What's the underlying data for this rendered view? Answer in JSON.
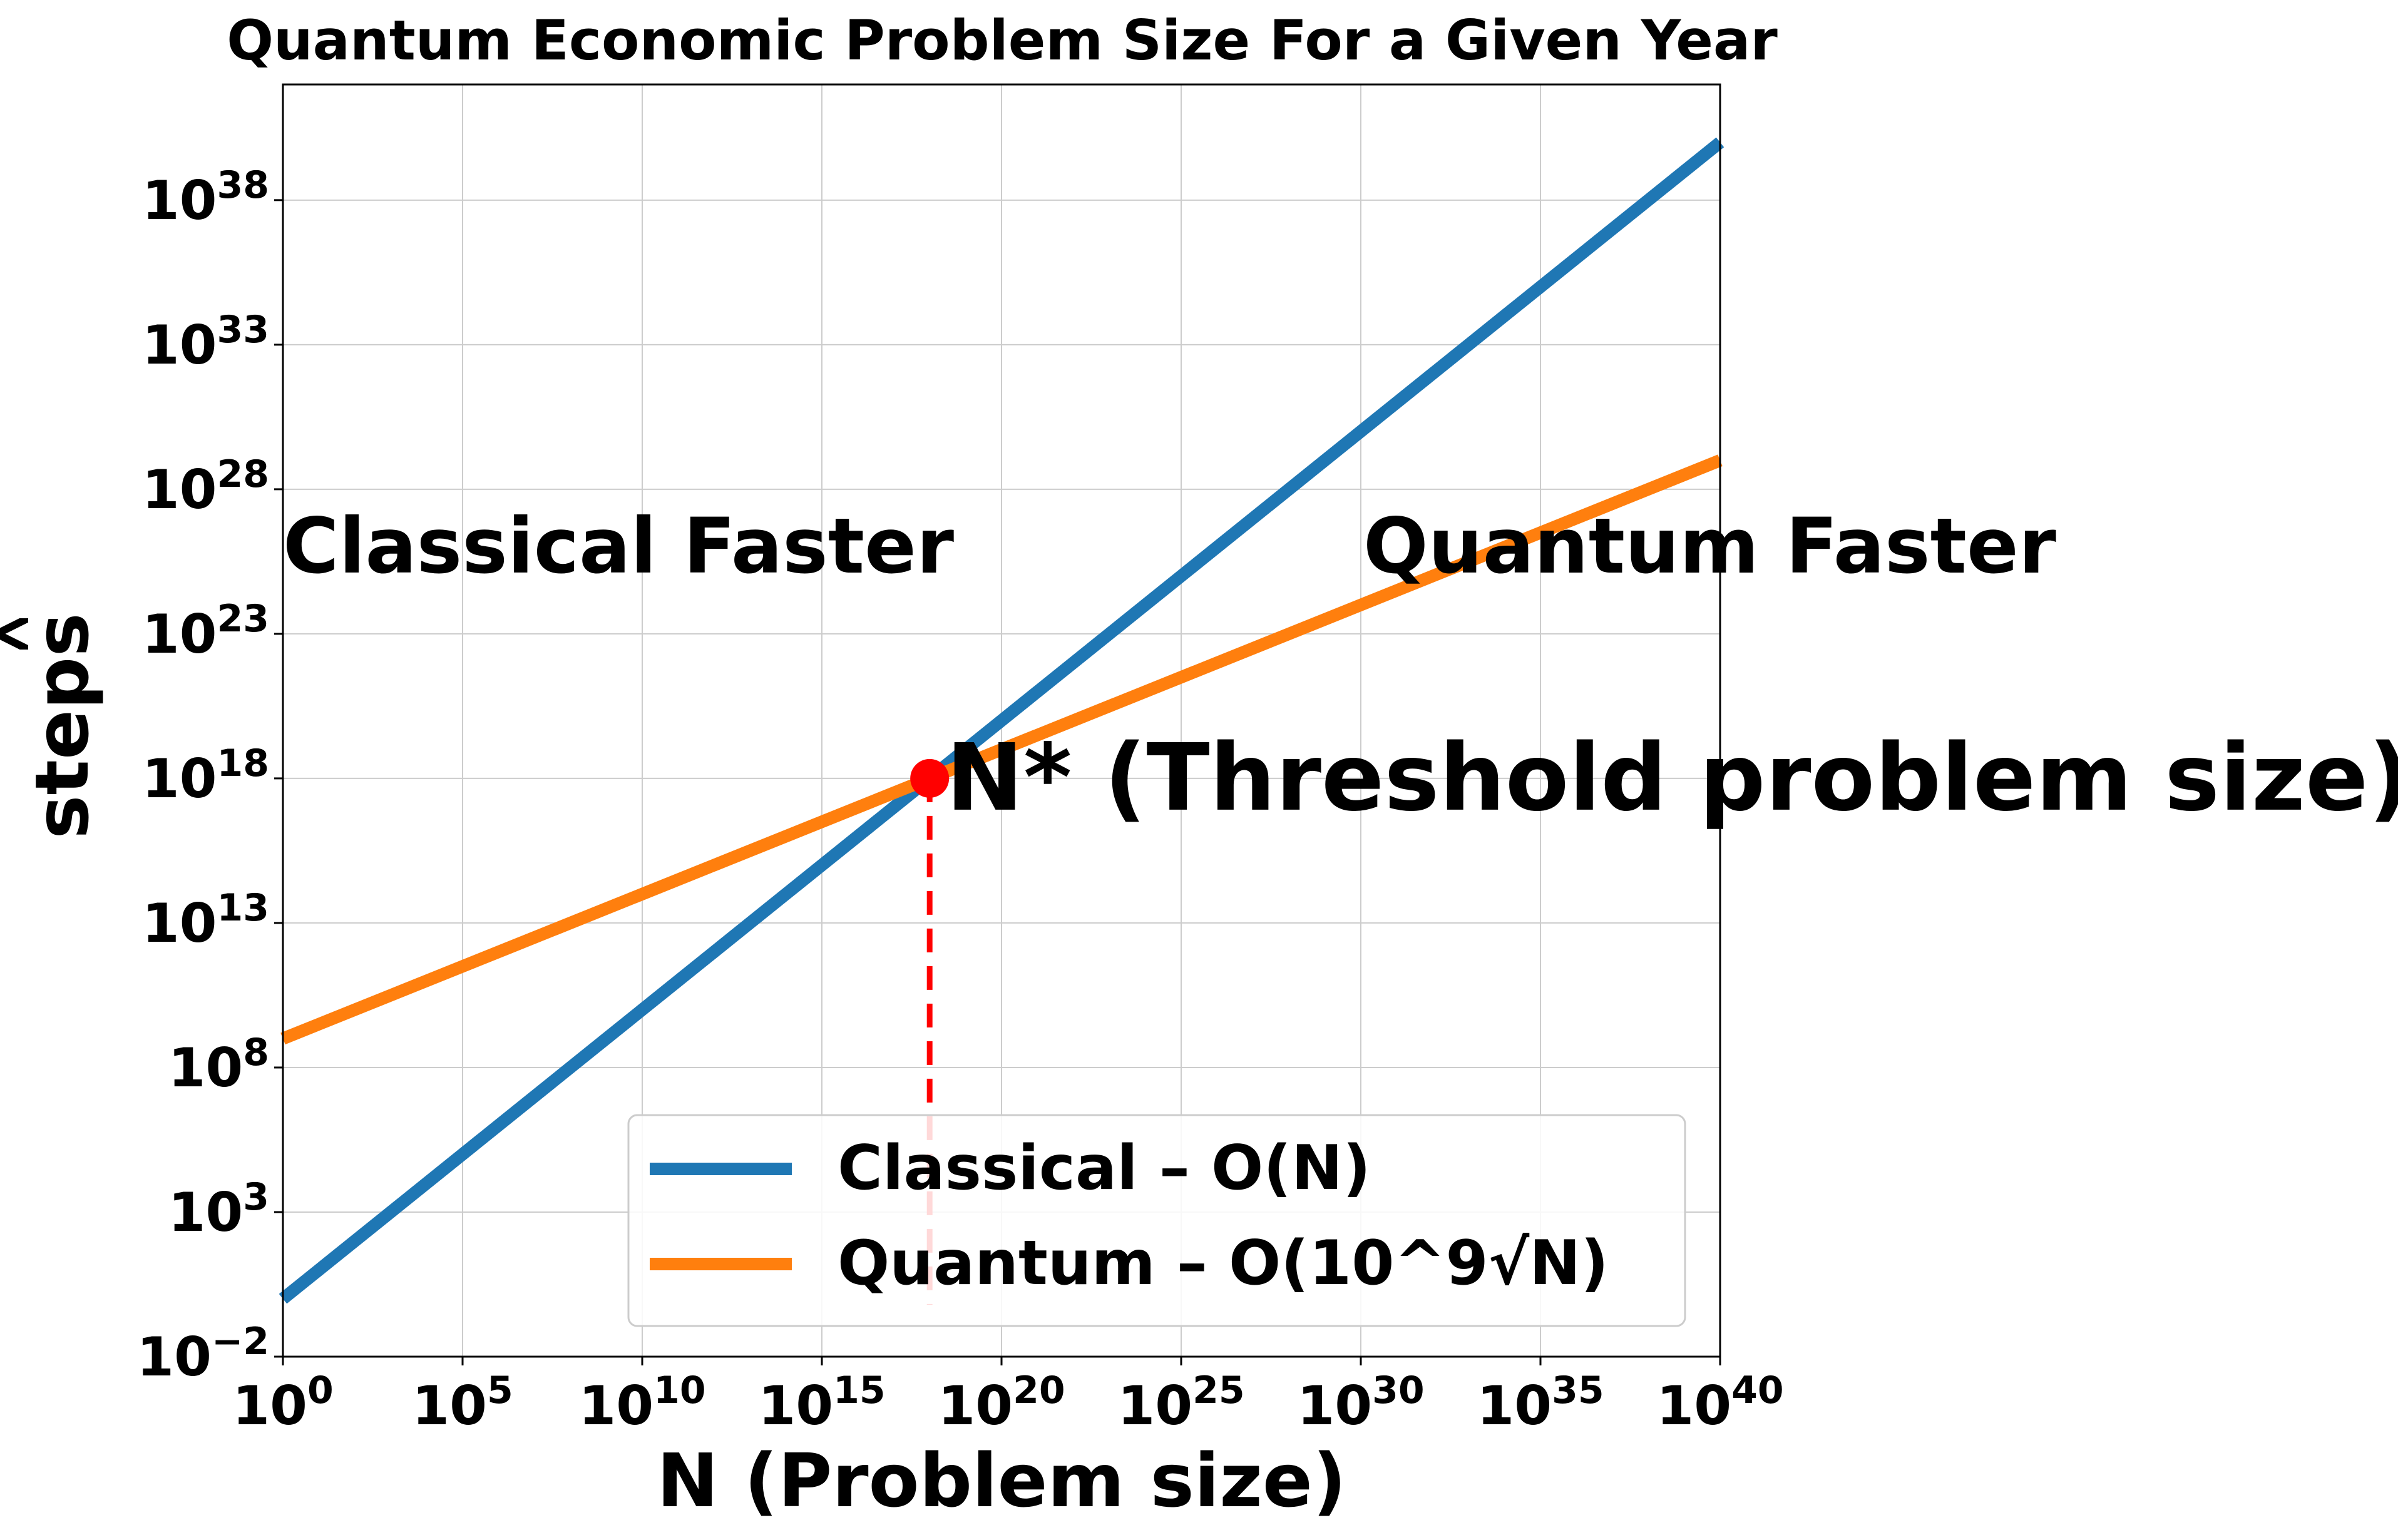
{
  "chart_data": {
    "type": "line",
    "title": "Quantum Economic Problem Size For a Given Year",
    "xlabel": "N (Problem size)",
    "ylabel": "steps",
    "x_scale": "log",
    "y_scale": "log",
    "xlim": [
      "1e0",
      "1e40"
    ],
    "ylim": [
      "1e-2",
      "1e42"
    ],
    "grid": true,
    "legend_position": "lower-right",
    "x_ticks": [
      {
        "base": "10",
        "exp": "0"
      },
      {
        "base": "10",
        "exp": "5"
      },
      {
        "base": "10",
        "exp": "10"
      },
      {
        "base": "10",
        "exp": "15"
      },
      {
        "base": "10",
        "exp": "20"
      },
      {
        "base": "10",
        "exp": "25"
      },
      {
        "base": "10",
        "exp": "30"
      },
      {
        "base": "10",
        "exp": "35"
      },
      {
        "base": "10",
        "exp": "40"
      }
    ],
    "y_ticks": [
      {
        "base": "10",
        "exp": "−2"
      },
      {
        "base": "10",
        "exp": "3"
      },
      {
        "base": "10",
        "exp": "8"
      },
      {
        "base": "10",
        "exp": "13"
      },
      {
        "base": "10",
        "exp": "18"
      },
      {
        "base": "10",
        "exp": "23"
      },
      {
        "base": "10",
        "exp": "28"
      },
      {
        "base": "10",
        "exp": "33"
      },
      {
        "base": "10",
        "exp": "38"
      }
    ],
    "series": [
      {
        "name": "Classical – O(N)",
        "color": "#1f77b4",
        "x": [
          "1e0",
          "1e40"
        ],
        "y": [
          "1e0",
          "1e40"
        ]
      },
      {
        "name": "Quantum – O(10^9√N)",
        "color": "#ff7f0e",
        "x": [
          "1e0",
          "1e40"
        ],
        "y": [
          "1e9",
          "1e29"
        ]
      }
    ],
    "threshold": {
      "x": "1e18",
      "y": "1e18",
      "label": "N* (Threshold problem size)",
      "color": "#ff0000"
    },
    "regions": [
      {
        "label": "Classical Faster",
        "from": "1e1.5",
        "to": "1e17.6"
      },
      {
        "label": "Quantum Faster",
        "from": "1e18.4",
        "to": "1e39.8"
      }
    ],
    "region_arrow_y": "1e23"
  }
}
